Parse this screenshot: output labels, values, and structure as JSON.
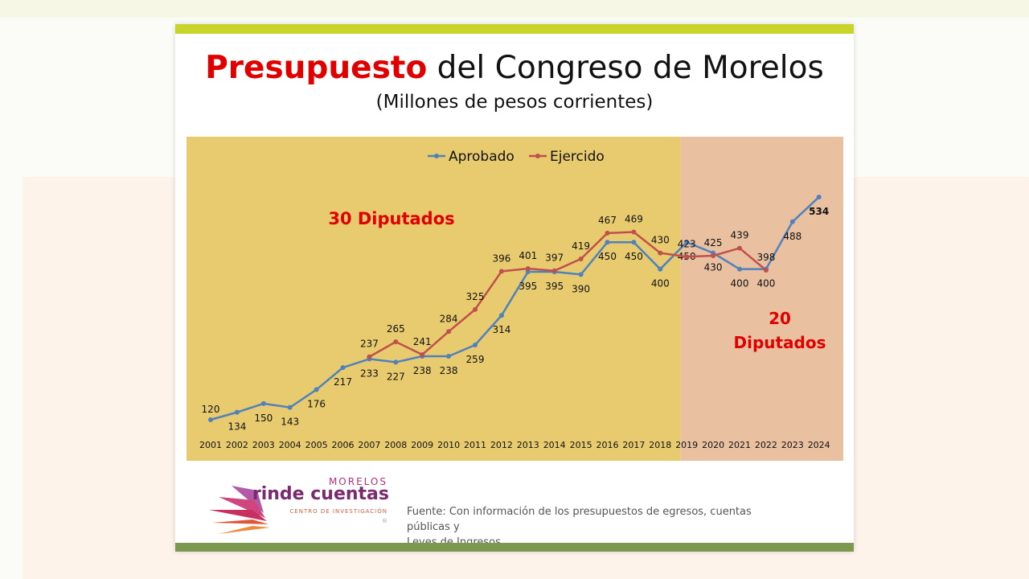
{
  "title_highlight": "Presupuesto",
  "title_rest": " del Congreso de Morelos",
  "subtitle": "(Millones de pesos corrientes)",
  "colors": {
    "aprobado": "#4f81bd",
    "ejercido": "#c0504d",
    "region_30": "#e8cb6e",
    "region_20": "#e9c0a0",
    "annotation": "#e00000"
  },
  "chart_data": {
    "type": "line",
    "categories": [
      "2001",
      "2002",
      "2003",
      "2004",
      "2005",
      "2006",
      "2007",
      "2008",
      "2009",
      "2010",
      "2011",
      "2012",
      "2013",
      "2014",
      "2015",
      "2016",
      "2017",
      "2018",
      "2019",
      "2020",
      "2021",
      "2022",
      "2023",
      "2024"
    ],
    "series": [
      {
        "name": "Aprobado",
        "values": [
          120,
          134,
          150,
          143,
          176,
          217,
          233,
          227,
          238,
          238,
          259,
          314,
          395,
          395,
          390,
          450,
          450,
          400,
          450,
          430,
          400,
          400,
          488,
          534
        ]
      },
      {
        "name": "Ejercido",
        "values": [
          null,
          null,
          null,
          null,
          null,
          null,
          237,
          265,
          241,
          284,
          325,
          396,
          401,
          397,
          419,
          467,
          469,
          430,
          423,
          425,
          439,
          398,
          null,
          null
        ]
      }
    ],
    "legend_position": "top",
    "annotations": [
      {
        "text": "30 Diputados",
        "range": [
          "2001",
          "2019"
        ]
      },
      {
        "text_line1": "20",
        "text_line2": "Diputados",
        "range": [
          "2019",
          "2024"
        ]
      }
    ],
    "grid": false
  },
  "logo": {
    "line1": "MORELOS",
    "line2": "rinde cuentas",
    "line3": "CENTRO DE INVESTIGACIÓN",
    "mark": "®"
  },
  "source_line1": "Fuente: Con información de los presupuestos de egresos, cuentas públicas y",
  "source_line2": "Leyes de Ingresos."
}
